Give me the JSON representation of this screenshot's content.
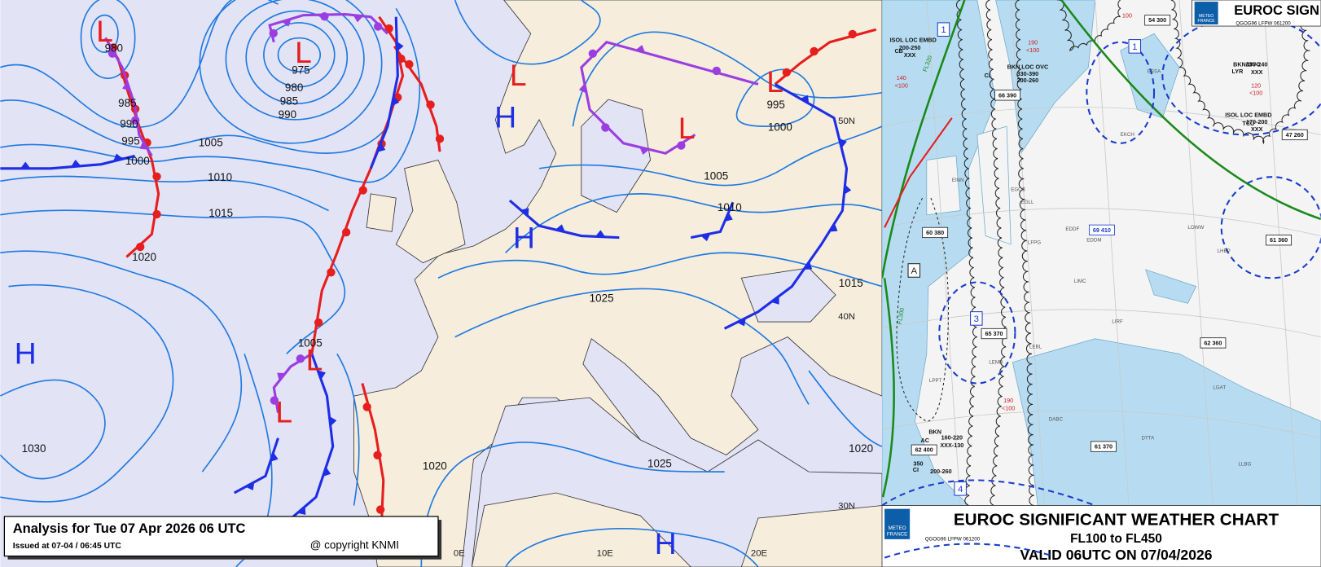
{
  "left_map": {
    "caption": {
      "title": "Analysis for Tue 07 Apr 2026 06 UTC",
      "issued": "Issued at 07-04 / 06:45 UTC",
      "copyright": "@ copyright KNMI"
    },
    "isobar_labels": [
      "980",
      "975",
      "980",
      "985",
      "990",
      "985",
      "990",
      "995",
      "1000",
      "1005",
      "1010",
      "1015",
      "1020",
      "1030",
      "1005",
      "1020",
      "1025",
      "1025",
      "1005",
      "1010",
      "995",
      "1000",
      "1015",
      "1020"
    ],
    "pressure_centers": [
      "L",
      "L",
      "L",
      "H",
      "L",
      "L",
      "H",
      "H",
      "L",
      "L",
      "H"
    ],
    "latitude_labels": [
      "50N",
      "40N",
      "30N"
    ],
    "longitude_labels": [
      "0E",
      "10E",
      "20E"
    ]
  },
  "right_map": {
    "header": {
      "logo_lines": [
        "METEO",
        "FRANCE"
      ],
      "title": "EUROC SIGN",
      "code": "QGOG96 LFPW 061200"
    },
    "footer": {
      "logo_lines": [
        "METEO",
        "FRANCE"
      ],
      "title": "EUROC SIGNIFICANT WEATHER CHART",
      "levels": "FL100 to FL450",
      "valid": "VALID 06UTC ON 07/04/2026",
      "code": "QGOG96 LFPW 061200"
    },
    "area_ids": [
      "1",
      "1",
      "A",
      "3",
      "4"
    ],
    "tropopause_heights": [
      "54 300",
      "66 390",
      "60 380",
      "65 370",
      "62 400",
      "61 370",
      "62 360",
      "61 360",
      "47 260",
      "69 410"
    ],
    "cloud_labels": [
      "ISOL LOC EMBD",
      "TCU",
      "170-200",
      "XXX",
      "BKN/OVC",
      "LYR",
      "180-240",
      "XXX",
      "BKN LOC OVC",
      "330-390",
      "200-260",
      "CI",
      "BKN",
      "AC",
      "160-220",
      "XXX-130",
      "350",
      "200-260",
      "CI",
      "ISOL LOC EMBD",
      "CB",
      "200-250",
      "XXX"
    ],
    "turbulence": [
      "190",
      "<100",
      "120",
      "<100",
      "140",
      "<100",
      "190",
      "<100",
      "100"
    ],
    "jet_labels": [
      "FL320",
      "FL300"
    ],
    "stations": [
      "EGLL",
      "EGCC",
      "EINN",
      "LFPG",
      "EDDF",
      "EDDM",
      "LIMC",
      "LIRF",
      "LEMD",
      "LEBL",
      "LPPT",
      "LOWW",
      "LHBP",
      "EKCH",
      "ESSA",
      "DABC",
      "DTTA",
      "LLBG",
      "LGAT"
    ]
  }
}
